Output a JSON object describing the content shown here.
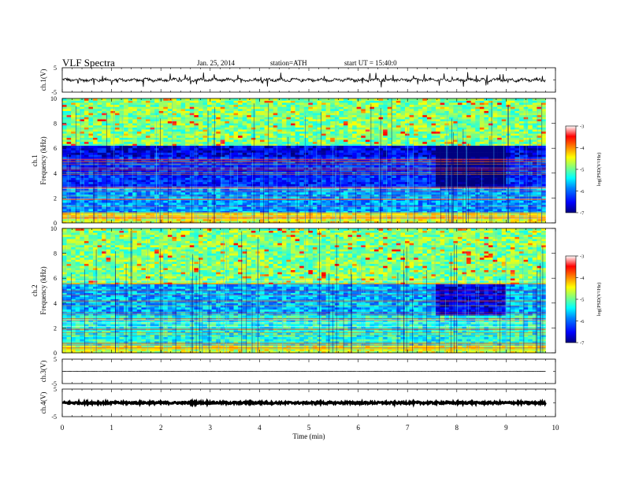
{
  "header": {
    "title": "VLF  Spectra",
    "date": "Jan. 25, 2014",
    "station": "station=ATH",
    "start": "start  UT  =   15:40:0"
  },
  "chart_data": [
    {
      "type": "line",
      "panel": "ch1-waveform",
      "ylabel": "ch.1(V)",
      "ylim": [
        -5,
        5
      ],
      "yticks": [
        "5",
        "-5"
      ],
      "xlim": [
        0,
        10
      ],
      "x_data_range": [
        0,
        9.8
      ],
      "baseline": 0,
      "description_values": {
        "typical_amplitude_V": 0.8,
        "max_spike_V": 2.3
      }
    },
    {
      "type": "heatmap",
      "panel": "ch1-spectrogram",
      "ylabel": "ch.1\nFrequency (kHz)",
      "ylabel_line1": "ch.1",
      "ylabel_line2": "Frequency (kHz)",
      "ylim": [
        0,
        10
      ],
      "yticks": [
        "0",
        "2",
        "4",
        "6",
        "8",
        "10"
      ],
      "xlim": [
        0,
        10
      ],
      "x_data_range": [
        0,
        9.8
      ],
      "colorbar": {
        "label": "log(PSD(V²/Hz)",
        "range": [
          -7,
          -3
        ],
        "ticks": [
          "-3",
          "-4",
          "-5",
          "-6",
          "-7"
        ],
        "colors": [
          "#00007f",
          "#0000ff",
          "#0080ff",
          "#00ffff",
          "#80ff80",
          "#ffff00",
          "#ff8000",
          "#ff0000",
          "#ffffff"
        ]
      },
      "bands": [
        {
          "f_low": 6.2,
          "f_high": 10,
          "log_psd": -4.9
        },
        {
          "f_low": 5.3,
          "f_high": 6.2,
          "log_psd": -6.6
        },
        {
          "f_low": 2.8,
          "f_high": 5.3,
          "log_psd": -6.3
        },
        {
          "f_low": 0.8,
          "f_high": 2.8,
          "log_psd": -5.8
        },
        {
          "f_low": 0,
          "f_high": 0.8,
          "log_psd": -4.5
        }
      ],
      "quiet_interval_min": [
        7.55,
        9.0
      ]
    },
    {
      "type": "heatmap",
      "panel": "ch2-spectrogram",
      "ylabel_line1": "ch.2",
      "ylabel_line2": "Frequency (kHz)",
      "ylim": [
        0,
        10
      ],
      "yticks": [
        "0",
        "2",
        "4",
        "6",
        "8",
        "10"
      ],
      "xlim": [
        0,
        10
      ],
      "x_data_range": [
        0,
        9.8
      ],
      "colorbar": {
        "label": "log(PSD(V²/Hz)",
        "range": [
          -7,
          -3
        ],
        "ticks": [
          "-3",
          "-4",
          "-5",
          "-6",
          "-7"
        ]
      },
      "bands": [
        {
          "f_low": 5.5,
          "f_high": 10,
          "log_psd": -4.9
        },
        {
          "f_low": 3.0,
          "f_high": 5.5,
          "log_psd": -5.7
        },
        {
          "f_low": 0.6,
          "f_high": 3.0,
          "log_psd": -5.3
        },
        {
          "f_low": 0,
          "f_high": 0.6,
          "log_psd": -4.6
        }
      ],
      "quiet_interval_min": [
        7.55,
        9.0
      ]
    },
    {
      "type": "line",
      "panel": "ch3-waveform",
      "ylabel": "ch.3(V)",
      "ylim": [
        -5,
        5
      ],
      "yticks": [
        "5",
        "-5"
      ],
      "xlim": [
        0,
        10
      ],
      "x_data_range": [
        0,
        9.8
      ],
      "baseline": 0
    },
    {
      "type": "line",
      "panel": "ch4-waveform",
      "ylabel": "ch.4(V)",
      "ylim": [
        -5,
        5
      ],
      "yticks": [
        "5",
        "-5"
      ],
      "xlim": [
        0,
        10
      ],
      "x_data_range": [
        0,
        9.8
      ],
      "baseline": 0,
      "xlabel": "Time  (min)",
      "xticks": [
        "0",
        "1",
        "2",
        "3",
        "4",
        "5",
        "6",
        "7",
        "8",
        "9",
        "10"
      ]
    }
  ]
}
